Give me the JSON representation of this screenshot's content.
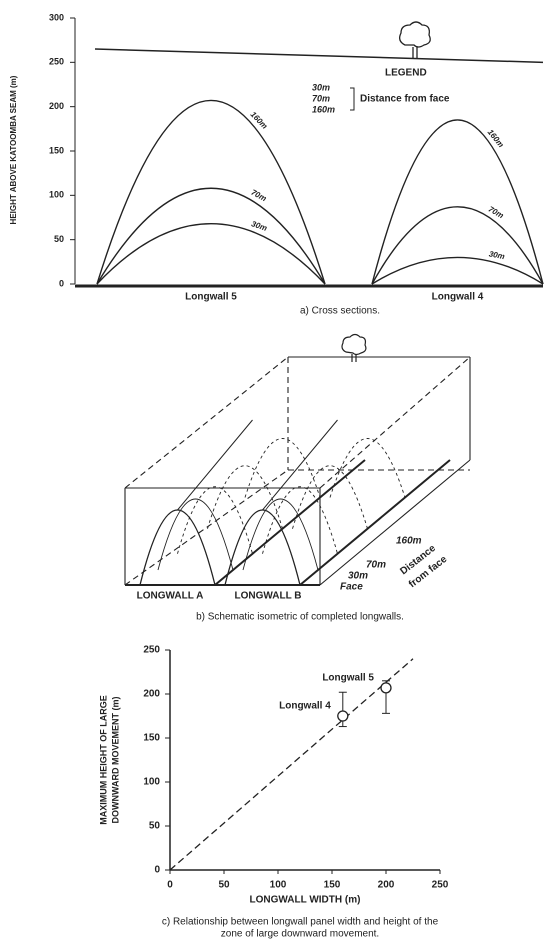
{
  "chart_data": [
    {
      "type": "arch",
      "ylabel": "HEIGHT ABOVE KATOOMBA SEAM (m)",
      "categories": [
        "Longwall 5",
        "Longwall 4"
      ],
      "series": [
        {
          "name": "30m",
          "color": "#222222",
          "values": [
            68,
            30
          ]
        },
        {
          "name": "70m",
          "color": "#222222",
          "values": [
            108,
            87
          ]
        },
        {
          "name": "160m",
          "color": "#222222",
          "values": [
            207,
            185
          ]
        }
      ],
      "ground": [
        265,
        250
      ],
      "legend_title": "LEGEND",
      "legend_note": "Distance from face",
      "ylim": [
        0,
        300
      ],
      "yticks": [
        0,
        50,
        100,
        150,
        200,
        250,
        300
      ],
      "caption": "a)  Cross sections."
    },
    {
      "type": "scatter",
      "xlabel": "LONGWALL WIDTH (m)",
      "ylabel": [
        "MAXIMUM HEIGHT OF LARGE",
        "DOWNWARD MOVEMENT (m)"
      ],
      "x": [
        160,
        200
      ],
      "y": [
        175,
        207
      ],
      "ylow": [
        163,
        178
      ],
      "yhigh": [
        202,
        215
      ],
      "point_labels": [
        "Longwall 4",
        "Longwall 5"
      ],
      "trend": {
        "x": [
          0,
          225
        ],
        "y": [
          0,
          240
        ]
      },
      "color": "#222222",
      "xlim": [
        0,
        250
      ],
      "xticks": [
        0,
        50,
        100,
        150,
        200,
        250
      ],
      "ylim": [
        0,
        250
      ],
      "yticks": [
        0,
        50,
        100,
        150,
        200,
        250
      ],
      "caption": [
        "c)  Relationship between longwall panel width and height of the",
        "zone of large downward movement."
      ]
    }
  ],
  "diagram": {
    "labels": [
      "LONGWALL A",
      "LONGWALL B"
    ],
    "distances": [
      "160m",
      "70m",
      "30m",
      "Face"
    ],
    "axis_label": [
      "Distance",
      "from face"
    ],
    "caption": "b)  Schematic isometric of completed longwalls."
  }
}
